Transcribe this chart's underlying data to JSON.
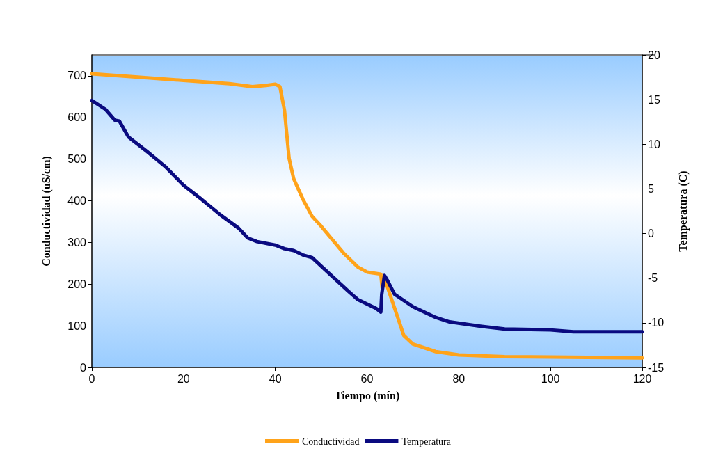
{
  "chart_data": {
    "type": "line",
    "xlabel": "Tiempo (mín)",
    "ylabel": "Conductividad (uS/cm)",
    "y2label": "Temperatura (C)",
    "xlim": [
      0,
      120
    ],
    "xticks": [
      0,
      20,
      40,
      60,
      80,
      100,
      120
    ],
    "ylim": [
      0,
      750
    ],
    "yticks": [
      0,
      100,
      200,
      300,
      400,
      500,
      600,
      700
    ],
    "y2lim": [
      -15,
      20
    ],
    "y2ticks": [
      -15,
      -10,
      -5,
      0,
      5,
      10,
      15,
      20
    ],
    "grid": false,
    "legend": "bottom",
    "marker": "none",
    "line_style": "solid",
    "series": [
      {
        "name": "Conductividad",
        "color": "#ffa31a",
        "x": [
          0,
          10,
          20,
          30,
          35,
          38,
          40,
          41,
          42,
          43,
          44,
          46,
          48,
          50,
          55,
          58,
          60,
          63,
          63.3,
          64,
          65,
          67,
          68,
          70,
          75,
          80,
          90,
          100,
          120
        ],
        "values": [
          705,
          697,
          689,
          681,
          674,
          677,
          680,
          674,
          617,
          502,
          453,
          404,
          363,
          339,
          273,
          241,
          229,
          224,
          191,
          208,
          175,
          110,
          77,
          56,
          38,
          30,
          26,
          25,
          23
        ]
      },
      {
        "name": "Temperatura",
        "color": "#0a0a80",
        "axis": "y2",
        "x": [
          0,
          3,
          5,
          6,
          8,
          12,
          16,
          20,
          24,
          28,
          32,
          34,
          36,
          40,
          42,
          44,
          46,
          48,
          52,
          56,
          58,
          62,
          63,
          63.2,
          63.8,
          64.5,
          66,
          70,
          75,
          78,
          85,
          90,
          100,
          105,
          120
        ],
        "values": [
          14.9,
          13.9,
          12.7,
          12.6,
          10.8,
          9.2,
          7.5,
          5.4,
          3.8,
          2.1,
          0.6,
          -0.5,
          -0.9,
          -1.3,
          -1.7,
          -1.9,
          -2.4,
          -2.7,
          -4.6,
          -6.5,
          -7.4,
          -8.4,
          -8.8,
          -6.8,
          -4.7,
          -5.3,
          -6.8,
          -8.2,
          -9.4,
          -9.9,
          -10.4,
          -10.7,
          -10.8,
          -11.0,
          -11.0
        ]
      }
    ]
  }
}
